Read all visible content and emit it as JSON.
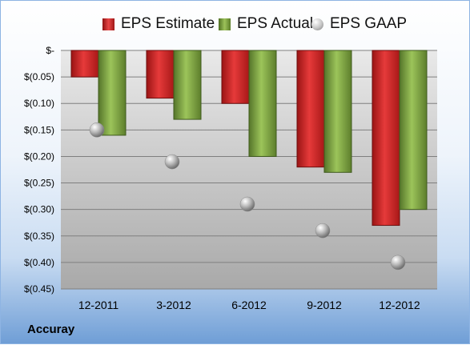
{
  "company": "Accuray",
  "chart_data": {
    "type": "bar",
    "categories": [
      "12-2011",
      "3-2012",
      "6-2012",
      "9-2012",
      "12-2012"
    ],
    "series": [
      {
        "name": "EPS Estimate",
        "kind": "bar",
        "color": "#d42a2a",
        "values": [
          -0.05,
          -0.09,
          -0.1,
          -0.22,
          -0.33
        ]
      },
      {
        "name": "EPS Actual",
        "kind": "bar",
        "color": "#7aa03a",
        "values": [
          -0.16,
          -0.13,
          -0.2,
          -0.23,
          -0.3
        ]
      },
      {
        "name": "EPS GAAP",
        "kind": "scatter",
        "color": "#b8b8b8",
        "values": [
          -0.15,
          -0.21,
          -0.29,
          -0.34,
          -0.4
        ]
      }
    ],
    "yticks": [
      0,
      -0.05,
      -0.1,
      -0.15,
      -0.2,
      -0.25,
      -0.3,
      -0.35,
      -0.4,
      -0.45
    ],
    "ytick_labels": [
      "$-",
      "$(0.05)",
      "$(0.10)",
      "$(0.15)",
      "$(0.20)",
      "$(0.25)",
      "$(0.30)",
      "$(0.35)",
      "$(0.40)",
      "$(0.45)"
    ],
    "ylim": [
      -0.45,
      0
    ],
    "grid": true,
    "legend_position": "top"
  }
}
